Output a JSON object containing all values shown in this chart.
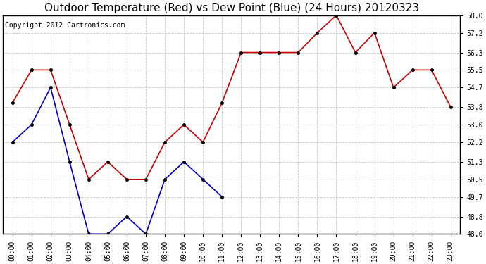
{
  "title": "Outdoor Temperature (Red) vs Dew Point (Blue) (24 Hours) 20120323",
  "copyright_text": "Copyright 2012 Cartronics.com",
  "x_labels": [
    "00:00",
    "01:00",
    "02:00",
    "03:00",
    "04:00",
    "05:00",
    "06:00",
    "07:00",
    "08:00",
    "09:00",
    "10:00",
    "11:00",
    "12:00",
    "13:00",
    "14:00",
    "15:00",
    "16:00",
    "17:00",
    "18:00",
    "19:00",
    "20:00",
    "21:00",
    "22:00",
    "23:00"
  ],
  "temp_red": [
    54.0,
    55.5,
    55.5,
    53.0,
    50.5,
    51.3,
    50.5,
    50.5,
    52.2,
    53.0,
    52.2,
    54.0,
    56.3,
    56.3,
    56.3,
    56.3,
    57.2,
    58.0,
    56.3,
    57.2,
    54.7,
    55.5,
    55.5,
    53.8
  ],
  "dew_blue": [
    52.2,
    53.0,
    54.7,
    51.3,
    48.0,
    48.0,
    48.8,
    48.0,
    50.5,
    51.3,
    50.5,
    49.7,
    null,
    null,
    null,
    null,
    null,
    null,
    null,
    null,
    null,
    null,
    null,
    null
  ],
  "ylim_min": 48.0,
  "ylim_max": 58.0,
  "yticks": [
    48.0,
    48.8,
    49.7,
    50.5,
    51.3,
    52.2,
    53.0,
    53.8,
    54.7,
    55.5,
    56.3,
    57.2,
    58.0
  ],
  "bg_color": "#ffffff",
  "plot_bg_color": "#ffffff",
  "grid_color": "#bbbbbb",
  "title_fontsize": 11,
  "tick_fontsize": 7,
  "copyright_fontsize": 7,
  "line_color_red": "#cc0000",
  "line_color_blue": "#0000cc",
  "marker_color": "#000000",
  "marker_size": 3,
  "linewidth": 1.2
}
